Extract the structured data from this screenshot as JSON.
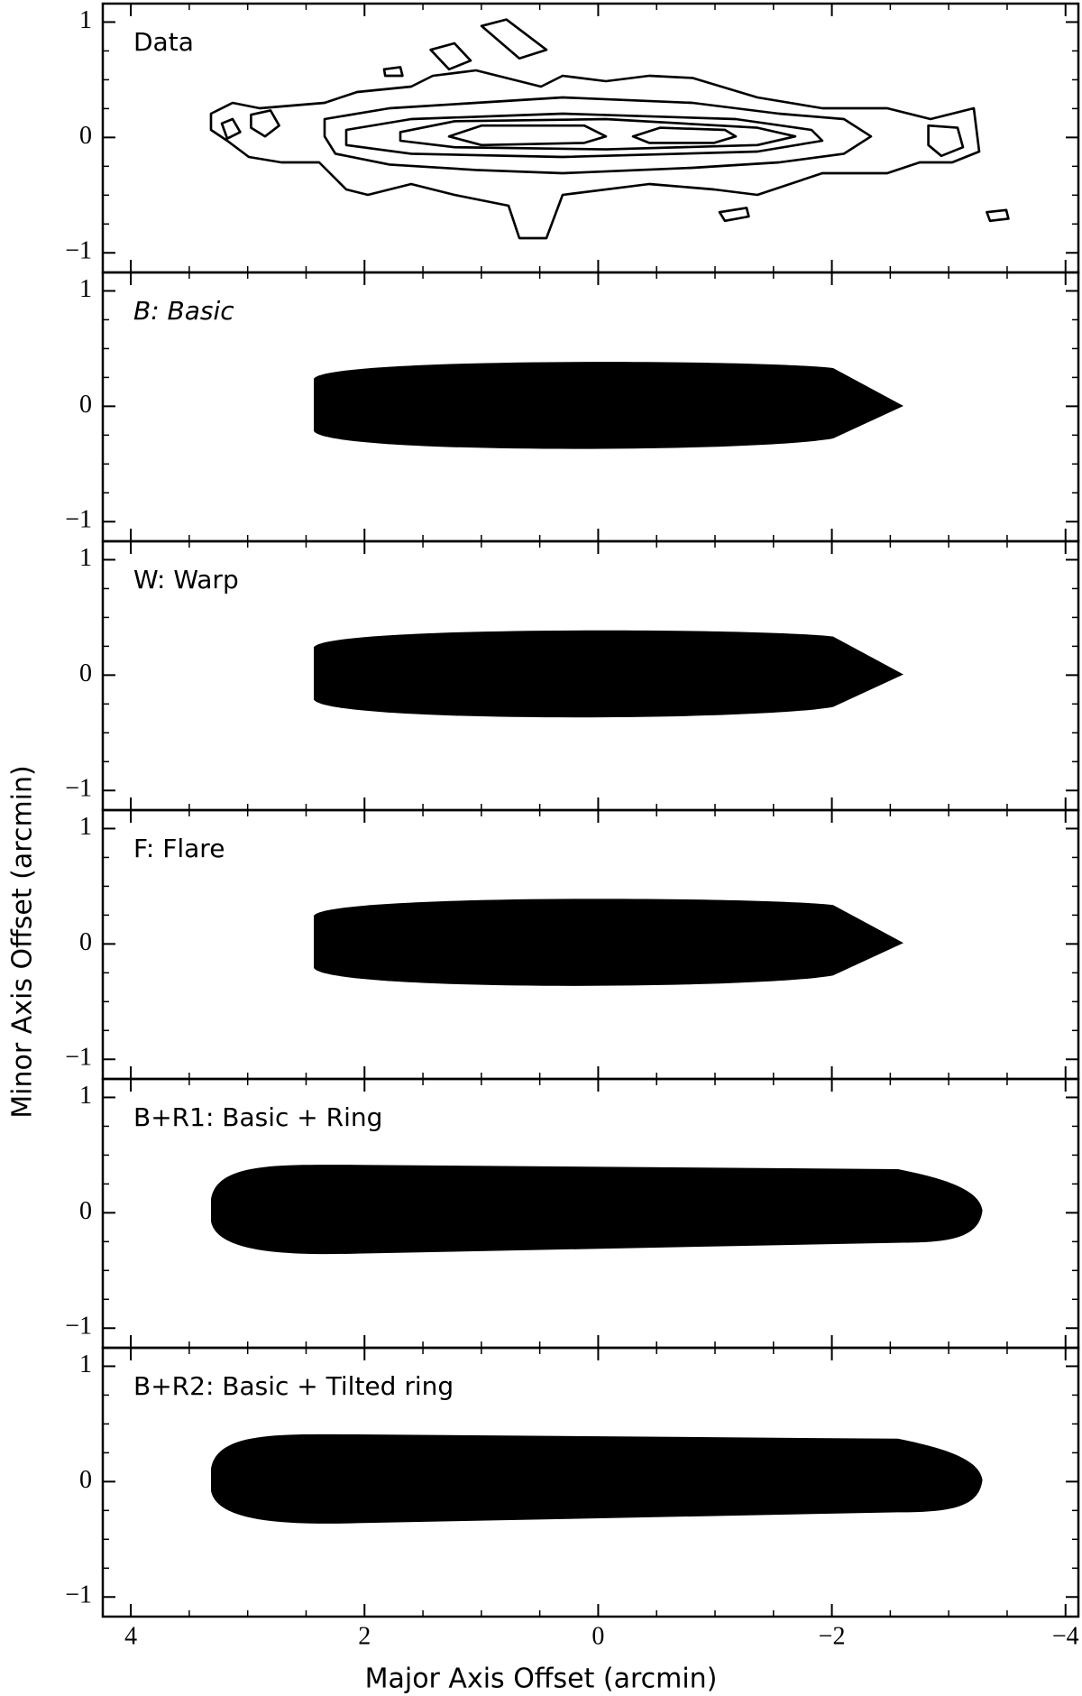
{
  "x_label": "Major Axis Offset (arcmin)",
  "y_label": "Minor Axis Offset (arcmin)",
  "chart_data": [
    {
      "type": "contour",
      "title": "Data",
      "title_style": "normal",
      "xlim": [
        4.24,
        -4.11
      ],
      "ylim": [
        -1.17,
        1.16
      ],
      "xticks": [
        4,
        2,
        0,
        {
          "value": -2,
          "label": "−2"
        },
        {
          "value": -4,
          "label": "−4"
        }
      ],
      "yticks": [
        {
          "value": -1,
          "label": "−1"
        },
        0,
        1
      ]
    },
    {
      "type": "contour",
      "title": "B: Basic",
      "title_style": "italic",
      "xlim": [
        4.24,
        -4.11
      ],
      "ylim": [
        -1.17,
        1.16
      ],
      "xticks": [
        4,
        2,
        0,
        {
          "value": -2,
          "label": "−2"
        },
        {
          "value": -4,
          "label": "−4"
        }
      ],
      "yticks": [
        {
          "value": -1,
          "label": "−1"
        },
        0,
        1
      ]
    },
    {
      "type": "contour",
      "title": "W: Warp",
      "title_style": "normal",
      "xlim": [
        4.24,
        -4.11
      ],
      "ylim": [
        -1.17,
        1.16
      ],
      "xticks": [
        4,
        2,
        0,
        {
          "value": -2,
          "label": "−2"
        },
        {
          "value": -4,
          "label": "−4"
        }
      ],
      "yticks": [
        {
          "value": -1,
          "label": "−1"
        },
        0,
        1
      ]
    },
    {
      "type": "contour",
      "title": "F: Flare",
      "title_style": "normal",
      "xlim": [
        4.24,
        -4.11
      ],
      "ylim": [
        -1.17,
        1.16
      ],
      "xticks": [
        4,
        2,
        0,
        {
          "value": -2,
          "label": "−2"
        },
        {
          "value": -4,
          "label": "−4"
        }
      ],
      "yticks": [
        {
          "value": -1,
          "label": "−1"
        },
        0,
        1
      ]
    },
    {
      "type": "contour",
      "title": "B+R1: Basic + Ring",
      "title_style": "normal",
      "xlim": [
        4.24,
        -4.11
      ],
      "ylim": [
        -1.17,
        1.16
      ],
      "xticks": [
        4,
        2,
        0,
        {
          "value": -2,
          "label": "−2"
        },
        {
          "value": -4,
          "label": "−4"
        }
      ],
      "yticks": [
        {
          "value": -1,
          "label": "−1"
        },
        0,
        1
      ]
    },
    {
      "type": "contour",
      "title": "B+R2: Basic + Tilted ring",
      "title_style": "normal",
      "xlim": [
        4.24,
        -4.11
      ],
      "ylim": [
        -1.17,
        1.16
      ],
      "xticks": [
        4,
        2,
        0,
        {
          "value": -2,
          "label": "−2"
        },
        {
          "value": -4,
          "label": "−4"
        }
      ],
      "yticks": [
        {
          "value": -1,
          "label": "−1"
        },
        0,
        1
      ]
    }
  ]
}
